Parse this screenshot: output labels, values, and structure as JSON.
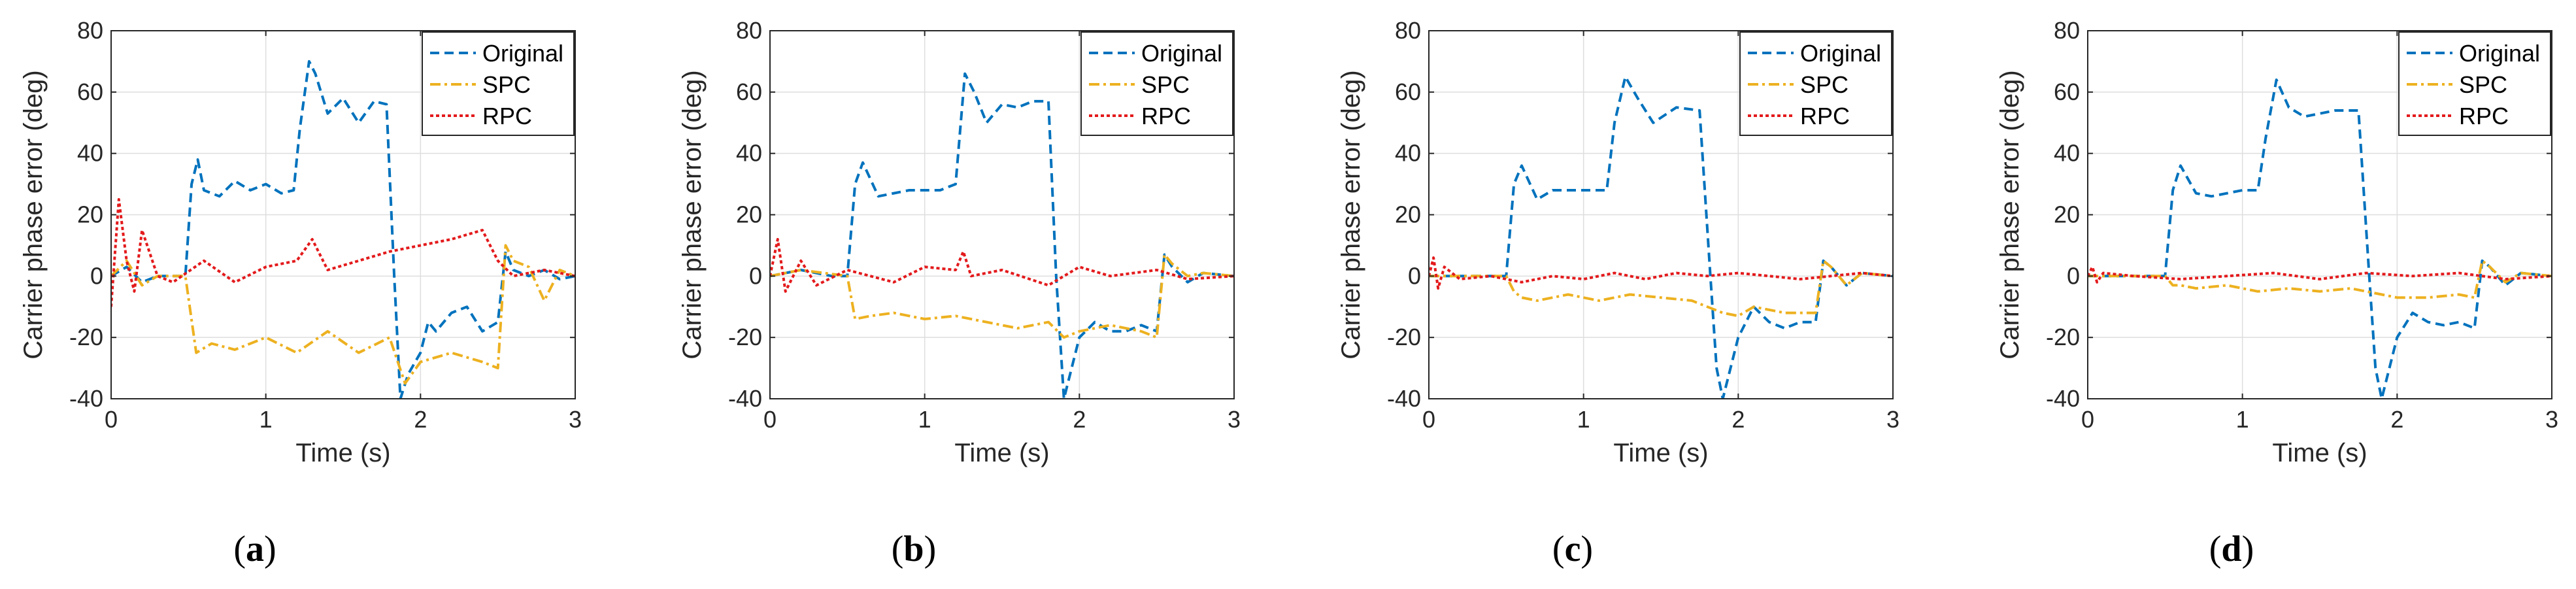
{
  "figure": {
    "colors": {
      "original": "#0072BD",
      "spc": "#EDB120",
      "rpc": "#E31A1C"
    },
    "icons": {
      "legend_original": "dashed-line-icon",
      "legend_spc": "dash-dot-line-icon",
      "legend_rpc": "dotted-line-icon"
    }
  },
  "chart_data": [
    {
      "type": "line",
      "panel_label": "a",
      "xlabel": "Time (s)",
      "ylabel": "Carrier phase error (deg)",
      "xlim": [
        0,
        3
      ],
      "ylim": [
        -40,
        80
      ],
      "xticks": [
        "0",
        "1",
        "2",
        "3"
      ],
      "yticks": [
        "-40",
        "-20",
        "0",
        "20",
        "40",
        "60",
        "80"
      ],
      "grid": true,
      "legend_position": "top-right",
      "series": [
        {
          "name": "Original",
          "x": [
            0,
            0.1,
            0.2,
            0.3,
            0.4,
            0.48,
            0.52,
            0.56,
            0.6,
            0.7,
            0.8,
            0.9,
            1.0,
            1.1,
            1.18,
            1.22,
            1.28,
            1.32,
            1.4,
            1.5,
            1.6,
            1.7,
            1.78,
            1.83,
            1.87,
            1.92,
            2.0,
            2.05,
            2.1,
            2.2,
            2.3,
            2.4,
            2.5,
            2.55,
            2.6,
            2.7,
            2.8,
            2.9,
            3.0
          ],
          "y": [
            0,
            3,
            -2,
            0,
            0,
            0,
            30,
            38,
            28,
            26,
            31,
            28,
            30,
            27,
            28,
            48,
            70,
            66,
            53,
            58,
            50,
            57,
            56,
            0,
            -40,
            -32,
            -25,
            -15,
            -18,
            -12,
            -10,
            -18,
            -15,
            8,
            2,
            0,
            2,
            -1,
            0
          ]
        },
        {
          "name": "SPC",
          "x": [
            0,
            0.1,
            0.2,
            0.3,
            0.4,
            0.48,
            0.55,
            0.65,
            0.8,
            1.0,
            1.2,
            1.4,
            1.6,
            1.8,
            1.9,
            2.0,
            2.2,
            2.4,
            2.5,
            2.55,
            2.6,
            2.7,
            2.8,
            2.9,
            3.0
          ],
          "y": [
            0,
            5,
            -3,
            0,
            0,
            0,
            -25,
            -22,
            -24,
            -20,
            -25,
            -18,
            -25,
            -20,
            -35,
            -28,
            -25,
            -28,
            -30,
            10,
            5,
            3,
            -8,
            2,
            0
          ]
        },
        {
          "name": "RPC",
          "x": [
            0,
            0.05,
            0.1,
            0.15,
            0.2,
            0.3,
            0.4,
            0.6,
            0.8,
            1.0,
            1.2,
            1.3,
            1.4,
            1.6,
            1.8,
            2.0,
            2.2,
            2.4,
            2.5,
            2.6,
            2.8,
            3.0
          ],
          "y": [
            -10,
            25,
            5,
            -5,
            15,
            0,
            -2,
            5,
            -2,
            3,
            5,
            12,
            2,
            5,
            8,
            10,
            12,
            15,
            5,
            0,
            2,
            0
          ]
        }
      ]
    },
    {
      "type": "line",
      "panel_label": "b",
      "xlabel": "Time (s)",
      "ylabel": "Carrier phase error (deg)",
      "xlim": [
        0,
        3
      ],
      "ylim": [
        -40,
        80
      ],
      "xticks": [
        "0",
        "1",
        "2",
        "3"
      ],
      "yticks": [
        "-40",
        "-20",
        "0",
        "20",
        "40",
        "60",
        "80"
      ],
      "grid": true,
      "legend_position": "top-right",
      "series": [
        {
          "name": "Original",
          "x": [
            0,
            0.2,
            0.4,
            0.5,
            0.55,
            0.6,
            0.7,
            0.9,
            1.1,
            1.2,
            1.26,
            1.32,
            1.4,
            1.5,
            1.6,
            1.7,
            1.8,
            1.85,
            1.9,
            2.0,
            2.1,
            2.2,
            2.3,
            2.4,
            2.5,
            2.55,
            2.6,
            2.7,
            2.8,
            3.0
          ],
          "y": [
            0,
            2,
            0,
            0,
            30,
            37,
            26,
            28,
            28,
            30,
            66,
            60,
            50,
            56,
            55,
            57,
            57,
            0,
            -40,
            -20,
            -15,
            -18,
            -18,
            -16,
            -18,
            7,
            3,
            -2,
            1,
            0
          ]
        },
        {
          "name": "SPC",
          "x": [
            0,
            0.2,
            0.5,
            0.55,
            0.65,
            0.8,
            1.0,
            1.2,
            1.4,
            1.6,
            1.8,
            1.9,
            2.0,
            2.2,
            2.4,
            2.5,
            2.55,
            2.6,
            2.7,
            2.8,
            3.0
          ],
          "y": [
            0,
            2,
            0,
            -14,
            -13,
            -12,
            -14,
            -13,
            -15,
            -17,
            -15,
            -20,
            -18,
            -16,
            -18,
            -20,
            7,
            4,
            0,
            1,
            0
          ]
        },
        {
          "name": "RPC",
          "x": [
            0,
            0.05,
            0.1,
            0.2,
            0.3,
            0.5,
            0.8,
            1.0,
            1.2,
            1.25,
            1.3,
            1.5,
            1.8,
            2.0,
            2.2,
            2.5,
            2.7,
            3.0
          ],
          "y": [
            0,
            12,
            -5,
            5,
            -3,
            2,
            -2,
            3,
            2,
            8,
            0,
            2,
            -3,
            3,
            0,
            2,
            -1,
            0
          ]
        }
      ]
    },
    {
      "type": "line",
      "panel_label": "c",
      "xlabel": "Time (s)",
      "ylabel": "Carrier phase error (deg)",
      "xlim": [
        0,
        3
      ],
      "ylim": [
        -40,
        80
      ],
      "xticks": [
        "0",
        "1",
        "2",
        "3"
      ],
      "yticks": [
        "-40",
        "-20",
        "0",
        "20",
        "40",
        "60",
        "80"
      ],
      "grid": true,
      "legend_position": "top-right",
      "series": [
        {
          "name": "Original",
          "x": [
            0,
            0.2,
            0.45,
            0.5,
            0.55,
            0.6,
            0.7,
            0.8,
            1.0,
            1.15,
            1.2,
            1.27,
            1.35,
            1.45,
            1.6,
            1.75,
            1.82,
            1.86,
            1.9,
            2.0,
            2.1,
            2.2,
            2.3,
            2.4,
            2.5,
            2.55,
            2.6,
            2.7,
            2.8,
            3.0
          ],
          "y": [
            0,
            0,
            0,
            0,
            30,
            36,
            25,
            28,
            28,
            28,
            50,
            65,
            58,
            50,
            55,
            54,
            0,
            -30,
            -40,
            -20,
            -10,
            -15,
            -17,
            -15,
            -15,
            5,
            3,
            -3,
            1,
            0
          ]
        },
        {
          "name": "SPC",
          "x": [
            0,
            0.45,
            0.5,
            0.55,
            0.6,
            0.7,
            0.9,
            1.1,
            1.3,
            1.5,
            1.7,
            1.9,
            2.0,
            2.1,
            2.3,
            2.5,
            2.55,
            2.6,
            2.7,
            2.8,
            3.0
          ],
          "y": [
            0,
            0,
            0,
            -5,
            -7,
            -8,
            -6,
            -8,
            -6,
            -7,
            -8,
            -12,
            -13,
            -10,
            -12,
            -12,
            5,
            3,
            -3,
            1,
            0
          ]
        },
        {
          "name": "RPC",
          "x": [
            0,
            0.03,
            0.06,
            0.1,
            0.2,
            0.4,
            0.6,
            0.8,
            1.0,
            1.2,
            1.4,
            1.6,
            1.8,
            2.0,
            2.2,
            2.4,
            2.6,
            2.8,
            3.0
          ],
          "y": [
            0,
            6,
            -4,
            3,
            -1,
            0,
            -2,
            0,
            -1,
            1,
            -1,
            1,
            0,
            1,
            0,
            -1,
            0,
            1,
            0
          ]
        }
      ]
    },
    {
      "type": "line",
      "panel_label": "d",
      "xlabel": "Time (s)",
      "ylabel": "Carrier phase error (deg)",
      "xlim": [
        0,
        3
      ],
      "ylim": [
        -40,
        80
      ],
      "xticks": [
        "0",
        "1",
        "2",
        "3"
      ],
      "yticks": [
        "-40",
        "-20",
        "0",
        "20",
        "40",
        "60",
        "80"
      ],
      "grid": true,
      "legend_position": "top-right",
      "series": [
        {
          "name": "Original",
          "x": [
            0,
            0.2,
            0.45,
            0.5,
            0.55,
            0.6,
            0.7,
            0.8,
            1.0,
            1.1,
            1.15,
            1.22,
            1.3,
            1.4,
            1.6,
            1.75,
            1.82,
            1.86,
            1.9,
            2.0,
            2.1,
            2.2,
            2.3,
            2.4,
            2.5,
            2.55,
            2.6,
            2.7,
            2.8,
            3.0
          ],
          "y": [
            0,
            0,
            0,
            0,
            28,
            36,
            27,
            26,
            28,
            28,
            45,
            64,
            55,
            52,
            54,
            54,
            0,
            -30,
            -40,
            -20,
            -12,
            -15,
            -16,
            -15,
            -17,
            5,
            3,
            -3,
            1,
            0
          ]
        },
        {
          "name": "SPC",
          "x": [
            0,
            0.45,
            0.5,
            0.55,
            0.6,
            0.7,
            0.9,
            1.1,
            1.3,
            1.5,
            1.7,
            1.9,
            2.0,
            2.2,
            2.4,
            2.5,
            2.55,
            2.6,
            2.7,
            2.8,
            3.0
          ],
          "y": [
            0,
            0,
            0,
            -3,
            -3,
            -4,
            -3,
            -5,
            -4,
            -5,
            -4,
            -6,
            -7,
            -7,
            -6,
            -7,
            5,
            3,
            -2,
            1,
            0
          ]
        },
        {
          "name": "RPC",
          "x": [
            0,
            0.03,
            0.06,
            0.1,
            0.3,
            0.6,
            0.9,
            1.2,
            1.5,
            1.8,
            2.1,
            2.4,
            2.7,
            3.0
          ],
          "y": [
            0,
            3,
            -2,
            1,
            0,
            -1,
            0,
            1,
            -1,
            1,
            0,
            1,
            -1,
            0
          ]
        }
      ]
    }
  ]
}
